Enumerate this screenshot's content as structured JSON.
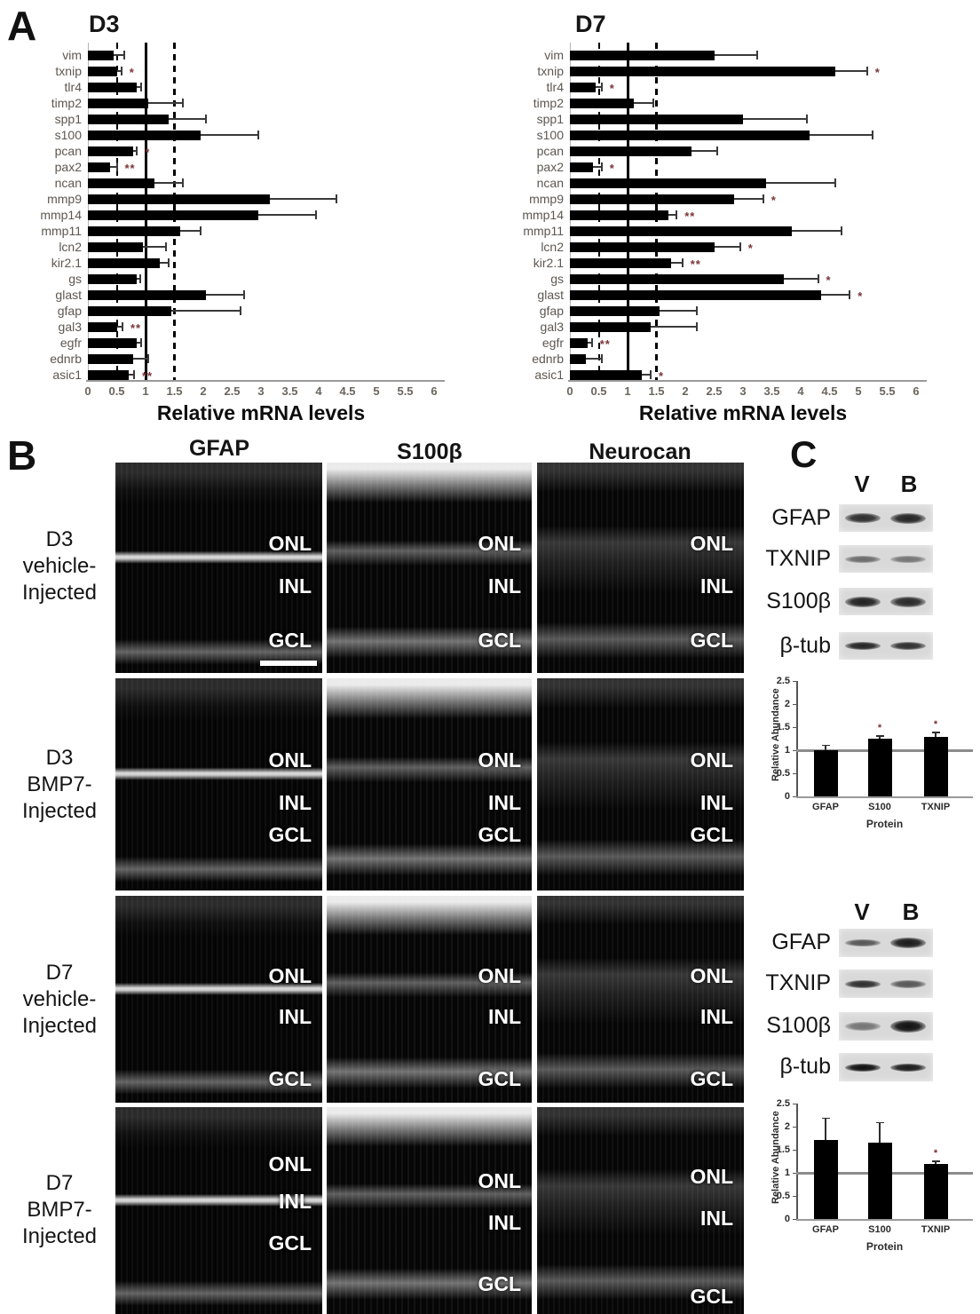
{
  "panel_a": {
    "label": "A"
  },
  "panel_b": {
    "label": "B",
    "col_headers": [
      "GFAP",
      "S100β",
      "Neurocan"
    ],
    "row_labels": [
      [
        "D3",
        "vehicle-",
        "Injected"
      ],
      [
        "D3",
        "BMP7-",
        "Injected"
      ],
      [
        "D7",
        "vehicle-",
        "Injected"
      ],
      [
        "D7",
        "BMP7-",
        "Injected"
      ]
    ],
    "layer_labels": [
      "ONL",
      "INL",
      "GCL"
    ]
  },
  "panel_c": {
    "label": "C",
    "blocks": [
      {
        "lanes": [
          "V",
          "B"
        ],
        "blot_rows": [
          "GFAP",
          "TXNIP",
          "S100β",
          "β-tub"
        ],
        "chart_index": 2
      },
      {
        "lanes": [
          "V",
          "B"
        ],
        "blot_rows": [
          "GFAP",
          "TXNIP",
          "S100β",
          "β-tub"
        ],
        "chart_index": 3
      }
    ]
  },
  "colors": {
    "bar": "#000000",
    "sig": "#7b3333",
    "reference_gray": "#8c8c8c"
  },
  "chart_data": [
    {
      "type": "bar",
      "orientation": "horizontal",
      "title": "D3",
      "xlabel": "Relative mRNA levels",
      "xticks": [
        "0",
        "0.5",
        "1",
        "1.5",
        "2",
        "2.5",
        "3",
        "3.5",
        "4",
        "4.5",
        "5",
        "5.5",
        "6"
      ],
      "xlim": [
        0,
        6.3
      ],
      "ref_lines": {
        "solid": 1.0,
        "dashed": [
          0.5,
          1.5
        ]
      },
      "categories": [
        "vim",
        "txnip",
        "tlr4",
        "timp2",
        "spp1",
        "s100",
        "pcan",
        "pax2",
        "ncan",
        "mmp9",
        "mmp14",
        "mmp11",
        "lcn2",
        "kir2.1",
        "gs",
        "glast",
        "gfap",
        "gal3",
        "egfr",
        "ednrb",
        "asic1"
      ],
      "values": [
        0.45,
        0.5,
        0.85,
        1.05,
        1.4,
        1.95,
        0.78,
        0.38,
        1.15,
        3.15,
        2.95,
        1.6,
        0.95,
        1.25,
        0.85,
        2.05,
        1.45,
        0.5,
        0.85,
        0.78,
        0.7
      ],
      "error_to": [
        0.63,
        0.58,
        0.92,
        1.65,
        2.05,
        2.95,
        0.85,
        0.5,
        1.65,
        4.3,
        3.95,
        1.95,
        1.35,
        1.4,
        0.9,
        2.7,
        2.65,
        0.6,
        0.92,
        1.05,
        0.8
      ],
      "sig": [
        "",
        "*",
        "",
        "",
        "",
        "",
        "*",
        "**",
        "",
        "",
        "",
        "",
        "",
        "",
        "",
        "",
        "",
        "**",
        "",
        "",
        "**"
      ]
    },
    {
      "type": "bar",
      "orientation": "horizontal",
      "title": "D7",
      "xlabel": "Relative mRNA levels",
      "xticks": [
        "0",
        "0.5",
        "1",
        "1.5",
        "2",
        "2.5",
        "3",
        "3.5",
        "4",
        "4.5",
        "5",
        "5.5",
        "6"
      ],
      "xlim": [
        0,
        6.3
      ],
      "ref_lines": {
        "solid": 1.0,
        "dashed": [
          0.5,
          1.5
        ]
      },
      "categories": [
        "vim",
        "txnip",
        "tlr4",
        "timp2",
        "spp1",
        "s100",
        "pcan",
        "pax2",
        "ncan",
        "mmp9",
        "mmp14",
        "mmp11",
        "lcn2",
        "kir2.1",
        "gs",
        "glast",
        "gfap",
        "gal3",
        "egfr",
        "ednrb",
        "asic1"
      ],
      "values": [
        2.5,
        4.6,
        0.45,
        1.1,
        3.0,
        4.15,
        2.1,
        0.4,
        3.4,
        2.85,
        1.7,
        3.85,
        2.5,
        1.75,
        3.7,
        4.35,
        1.55,
        1.4,
        0.3,
        0.28,
        1.25
      ],
      "error_to": [
        3.25,
        5.15,
        0.55,
        1.45,
        4.1,
        5.25,
        2.55,
        0.55,
        4.6,
        3.35,
        1.85,
        4.7,
        2.95,
        1.95,
        4.3,
        4.85,
        2.2,
        2.2,
        0.38,
        0.55,
        1.4
      ],
      "sig": [
        "",
        "*",
        "*",
        "",
        "",
        "",
        "",
        "*",
        "",
        "*",
        "**",
        "",
        "*",
        "**",
        "*",
        "*",
        "",
        "",
        "**",
        "",
        "*"
      ]
    },
    {
      "type": "bar",
      "orientation": "vertical",
      "title": "",
      "ylabel": "Relative Abundance",
      "xlabel": "Protein",
      "yticks": [
        "0",
        "0.5",
        "1",
        "1.5",
        "2",
        "2.5"
      ],
      "ylim": [
        0,
        2.5
      ],
      "ref_line": 1.0,
      "categories": [
        "GFAP",
        "S100",
        "TXNIP"
      ],
      "values": [
        1.0,
        1.25,
        1.28
      ],
      "error_up": [
        0.12,
        0.07,
        0.12
      ],
      "sig": [
        "",
        "*",
        "*"
      ]
    },
    {
      "type": "bar",
      "orientation": "vertical",
      "title": "",
      "ylabel": "Relative Abundance",
      "xlabel": "Protein",
      "yticks": [
        "0",
        "0.5",
        "1",
        "1.5",
        "2",
        "2.5"
      ],
      "ylim": [
        0,
        2.5
      ],
      "ref_line": 1.0,
      "categories": [
        "GFAP",
        "S100",
        "TXNIP"
      ],
      "values": [
        1.72,
        1.65,
        1.2
      ],
      "error_up": [
        0.48,
        0.45,
        0.06
      ],
      "sig": [
        "",
        "",
        "*"
      ]
    }
  ]
}
